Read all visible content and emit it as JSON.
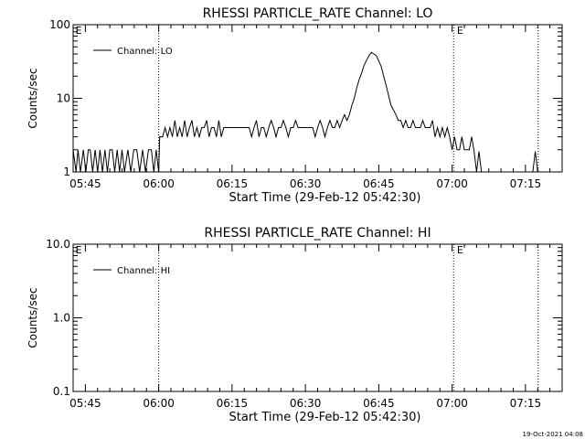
{
  "footer_timestamp": "19-Oct-2021 04:08",
  "chart_data": [
    {
      "type": "line",
      "title": "RHESSI PARTICLE_RATE Channel: LO",
      "xlabel": "Start Time (29-Feb-12 05:42:30)",
      "ylabel": "Counts/sec",
      "x_unit": "minutes after 05:42:30",
      "xlim": [
        0,
        100
      ],
      "ylim": [
        1,
        100
      ],
      "yscale": "log",
      "xticks": [
        {
          "x": 2.5,
          "label": "05:45"
        },
        {
          "x": 17.5,
          "label": "06:00"
        },
        {
          "x": 32.5,
          "label": "06:15"
        },
        {
          "x": 47.5,
          "label": "06:30"
        },
        {
          "x": 62.5,
          "label": "06:45"
        },
        {
          "x": 77.5,
          "label": "07:00"
        },
        {
          "x": 92.5,
          "label": "07:15"
        }
      ],
      "yticks": [
        {
          "y": 1,
          "label": "1"
        },
        {
          "y": 10,
          "label": "10"
        },
        {
          "y": 100,
          "label": "100"
        }
      ],
      "vlines": [
        17.5,
        77.8,
        95.1
      ],
      "annotations": [
        {
          "x": 0.3,
          "text": "E"
        },
        {
          "x": 78.3,
          "text": "E"
        }
      ],
      "legend": {
        "position": "top-left",
        "entries": [
          "Channel: LO"
        ]
      },
      "series": [
        {
          "name": "Channel: LO",
          "points": [
            [
              0.0,
              2
            ],
            [
              0.6,
              1
            ],
            [
              1.0,
              2
            ],
            [
              1.5,
              1
            ],
            [
              2.1,
              2
            ],
            [
              2.6,
              1
            ],
            [
              3.1,
              2
            ],
            [
              3.5,
              2
            ],
            [
              4.0,
              1
            ],
            [
              4.5,
              2
            ],
            [
              5.0,
              1
            ],
            [
              5.5,
              2
            ],
            [
              6.0,
              1
            ],
            [
              6.5,
              2
            ],
            [
              7.0,
              1
            ],
            [
              7.5,
              2
            ],
            [
              8.0,
              2
            ],
            [
              8.5,
              1
            ],
            [
              9.0,
              2
            ],
            [
              9.5,
              1
            ],
            [
              10.0,
              2
            ],
            [
              10.5,
              1
            ],
            [
              11.2,
              2
            ],
            [
              11.8,
              1
            ],
            [
              12.4,
              2
            ],
            [
              13.0,
              2
            ],
            [
              13.6,
              1
            ],
            [
              14.2,
              2
            ],
            [
              14.8,
              1
            ],
            [
              15.4,
              2
            ],
            [
              16.0,
              2
            ],
            [
              16.5,
              1
            ],
            [
              17.0,
              2
            ],
            [
              17.5,
              1
            ],
            [
              17.7,
              3
            ],
            [
              18.3,
              3
            ],
            [
              18.8,
              4
            ],
            [
              19.3,
              3
            ],
            [
              19.8,
              4
            ],
            [
              20.3,
              3
            ],
            [
              20.8,
              5
            ],
            [
              21.3,
              3
            ],
            [
              21.8,
              4
            ],
            [
              22.3,
              3
            ],
            [
              22.8,
              5
            ],
            [
              23.3,
              3
            ],
            [
              23.8,
              4
            ],
            [
              24.3,
              5
            ],
            [
              24.8,
              3
            ],
            [
              25.3,
              4
            ],
            [
              25.8,
              3
            ],
            [
              26.3,
              4
            ],
            [
              26.8,
              4
            ],
            [
              27.3,
              5
            ],
            [
              27.8,
              3
            ],
            [
              28.3,
              4
            ],
            [
              28.8,
              4
            ],
            [
              29.3,
              3
            ],
            [
              29.8,
              5
            ],
            [
              30.3,
              3
            ],
            [
              30.8,
              4
            ],
            [
              31.3,
              4
            ],
            [
              32.0,
              4
            ],
            [
              33.0,
              4
            ],
            [
              34.0,
              4
            ],
            [
              35.0,
              4
            ],
            [
              36.0,
              4
            ],
            [
              36.5,
              3
            ],
            [
              37.0,
              4
            ],
            [
              37.5,
              5
            ],
            [
              38.0,
              3
            ],
            [
              38.5,
              4
            ],
            [
              39.0,
              4
            ],
            [
              39.5,
              3
            ],
            [
              40.0,
              4
            ],
            [
              40.5,
              5
            ],
            [
              41.0,
              4
            ],
            [
              41.5,
              3
            ],
            [
              42.0,
              4
            ],
            [
              42.5,
              4
            ],
            [
              43.0,
              5
            ],
            [
              43.5,
              4
            ],
            [
              44.0,
              3
            ],
            [
              44.5,
              4
            ],
            [
              45.0,
              4
            ],
            [
              45.5,
              5
            ],
            [
              46.0,
              4
            ],
            [
              46.5,
              4
            ],
            [
              47.0,
              4
            ],
            [
              47.5,
              4
            ],
            [
              48.0,
              4
            ],
            [
              48.5,
              4
            ],
            [
              49.0,
              4
            ],
            [
              49.5,
              3
            ],
            [
              50.0,
              4
            ],
            [
              50.5,
              5
            ],
            [
              51.0,
              4
            ],
            [
              51.5,
              3
            ],
            [
              52.0,
              4
            ],
            [
              52.5,
              5
            ],
            [
              53.0,
              4
            ],
            [
              53.5,
              4
            ],
            [
              54.0,
              5
            ],
            [
              54.5,
              4
            ],
            [
              55.0,
              5
            ],
            [
              55.5,
              6
            ],
            [
              56.0,
              5
            ],
            [
              56.5,
              6
            ],
            [
              57.0,
              8
            ],
            [
              57.5,
              10
            ],
            [
              58.0,
              14
            ],
            [
              58.5,
              18
            ],
            [
              59.0,
              22
            ],
            [
              59.5,
              28
            ],
            [
              60.0,
              33
            ],
            [
              60.5,
              38
            ],
            [
              61.0,
              42
            ],
            [
              61.5,
              40
            ],
            [
              62.0,
              38
            ],
            [
              62.5,
              32
            ],
            [
              63.0,
              27
            ],
            [
              63.5,
              20
            ],
            [
              64.0,
              15
            ],
            [
              64.5,
              11
            ],
            [
              65.0,
              8
            ],
            [
              65.5,
              7
            ],
            [
              66.0,
              6
            ],
            [
              66.5,
              5
            ],
            [
              67.0,
              5
            ],
            [
              67.5,
              4
            ],
            [
              68.0,
              5
            ],
            [
              68.5,
              4
            ],
            [
              69.0,
              4
            ],
            [
              69.5,
              5
            ],
            [
              70.0,
              4
            ],
            [
              70.5,
              4
            ],
            [
              71.0,
              4
            ],
            [
              71.5,
              5
            ],
            [
              72.0,
              4
            ],
            [
              72.5,
              4
            ],
            [
              73.0,
              4
            ],
            [
              73.5,
              5
            ],
            [
              74.0,
              3
            ],
            [
              74.5,
              4
            ],
            [
              75.0,
              3
            ],
            [
              75.5,
              4
            ],
            [
              76.0,
              3
            ],
            [
              76.5,
              4
            ],
            [
              77.0,
              3
            ],
            [
              77.5,
              2
            ],
            [
              78.0,
              3
            ],
            [
              78.5,
              2
            ],
            [
              79.0,
              2
            ],
            [
              79.5,
              3
            ],
            [
              80.0,
              2
            ],
            [
              80.5,
              2
            ],
            [
              81.0,
              2
            ],
            [
              81.5,
              3
            ],
            [
              82.0,
              1.9
            ],
            [
              82.5,
              1
            ],
            [
              83.0,
              1.9
            ],
            [
              83.5,
              1
            ],
            [
              84.0,
              1
            ],
            [
              85.0,
              1
            ],
            [
              86.0,
              1
            ],
            [
              87.0,
              1
            ],
            [
              88.0,
              1
            ],
            [
              89.0,
              1
            ],
            [
              90.0,
              1
            ],
            [
              91.0,
              1
            ],
            [
              92.0,
              1
            ],
            [
              93.0,
              1
            ],
            [
              94.0,
              1
            ],
            [
              94.5,
              1.9
            ],
            [
              95.0,
              1
            ]
          ]
        }
      ]
    },
    {
      "type": "line",
      "title": "RHESSI PARTICLE_RATE Channel: HI",
      "xlabel": "Start Time (29-Feb-12 05:42:30)",
      "ylabel": "Counts/sec",
      "x_unit": "minutes after 05:42:30",
      "xlim": [
        0,
        100
      ],
      "ylim": [
        0.1,
        10
      ],
      "yscale": "log",
      "xticks": [
        {
          "x": 2.5,
          "label": "05:45"
        },
        {
          "x": 17.5,
          "label": "06:00"
        },
        {
          "x": 32.5,
          "label": "06:15"
        },
        {
          "x": 47.5,
          "label": "06:30"
        },
        {
          "x": 62.5,
          "label": "06:45"
        },
        {
          "x": 77.5,
          "label": "07:00"
        },
        {
          "x": 92.5,
          "label": "07:15"
        }
      ],
      "yticks": [
        {
          "y": 0.1,
          "label": "0.1"
        },
        {
          "y": 1,
          "label": "1.0"
        },
        {
          "y": 10,
          "label": "10.0"
        }
      ],
      "vlines": [
        17.5,
        77.8,
        95.1
      ],
      "annotations": [
        {
          "x": 0.3,
          "text": "E"
        },
        {
          "x": 78.3,
          "text": "E"
        }
      ],
      "legend": {
        "position": "top-left",
        "entries": [
          "Channel: HI"
        ]
      },
      "series": [
        {
          "name": "Channel: HI",
          "points": []
        }
      ]
    }
  ]
}
